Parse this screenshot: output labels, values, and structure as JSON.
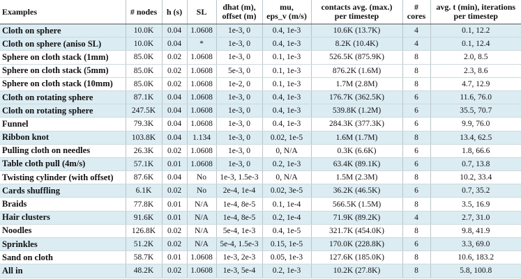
{
  "table": {
    "header": [
      "Examples",
      "# nodes",
      "h (s)",
      "SL",
      "dhat (m),\noffset (m)",
      "mu,\neps_v (m/s)",
      "contacts avg. (max.)\nper timestep",
      "#\ncores",
      "avg. t (min), iterations\nper timestep"
    ],
    "rows": [
      [
        "Cloth on sphere",
        "10.0K",
        "0.04",
        "1.0608",
        "1e-3, 0",
        "0.4, 1e-3",
        "10.6K (13.7K)",
        "4",
        "0.1, 12.2"
      ],
      [
        "Cloth on sphere (aniso SL)",
        "10.0K",
        "0.04",
        "*",
        "1e-3, 0",
        "0.4, 1e-3",
        "8.2K (10.4K)",
        "4",
        "0.1, 12.4"
      ],
      [
        "Sphere on cloth stack (1mm)",
        "85.0K",
        "0.02",
        "1.0608",
        "1e-3, 0",
        "0.1, 1e-3",
        "526.5K (875.9K)",
        "8",
        "2.0, 8.5"
      ],
      [
        "Sphere on cloth stack (5mm)",
        "85.0K",
        "0.02",
        "1.0608",
        "5e-3, 0",
        "0.1, 1e-3",
        "876.2K (1.6M)",
        "8",
        "2.3, 8.6"
      ],
      [
        "Sphere on cloth stack (10mm)",
        "85.0K",
        "0.02",
        "1.0608",
        "1e-2, 0",
        "0.1, 1e-3",
        "1.7M (2.8M)",
        "8",
        "4.7, 12.9"
      ],
      [
        "Cloth on rotating sphere",
        "87.1K",
        "0.04",
        "1.0608",
        "1e-3, 0",
        "0.4, 1e-3",
        "176.7K (362.5K)",
        "6",
        "11.6, 76.0"
      ],
      [
        "Cloth on rotating sphere",
        "247.5K",
        "0.04",
        "1.0608",
        "1e-3, 0",
        "0.4, 1e-3",
        "539.8K (1.2M)",
        "6",
        "35.5, 70.7"
      ],
      [
        "Funnel",
        "79.3K",
        "0.04",
        "1.0608",
        "1e-3, 0",
        "0.4, 1e-3",
        "284.3K (377.3K)",
        "6",
        "9.9, 76.0"
      ],
      [
        "Ribbon knot",
        "103.8K",
        "0.04",
        "1.134",
        "1e-3, 0",
        "0.02, 1e-5",
        "1.6M (1.7M)",
        "8",
        "13.4, 62.5"
      ],
      [
        "Pulling cloth on needles",
        "26.3K",
        "0.02",
        "1.0608",
        "1e-3, 0",
        "0, N/A",
        "0.3K (6.6K)",
        "6",
        "1.8, 66.6"
      ],
      [
        "Table cloth pull (4m/s)",
        "57.1K",
        "0.01",
        "1.0608",
        "1e-3, 0",
        "0.2, 1e-3",
        "63.4K (89.1K)",
        "6",
        "0.7, 13.8"
      ],
      [
        "Twisting cylinder (with offset)",
        "87.6K",
        "0.04",
        "No",
        "1e-3, 1.5e-3",
        "0, N/A",
        "1.5M (2.3M)",
        "8",
        "10.2, 33.4"
      ],
      [
        "Cards shuffling",
        "6.1K",
        "0.02",
        "No",
        "2e-4, 1e-4",
        "0.02, 3e-5",
        "36.2K (46.5K)",
        "6",
        "0.7, 35.2"
      ],
      [
        "Braids",
        "77.8K",
        "0.01",
        "N/A",
        "1e-4, 8e-5",
        "0.1, 1e-4",
        "566.5K (1.5M)",
        "8",
        "3.5, 16.9"
      ],
      [
        "Hair clusters",
        "91.6K",
        "0.01",
        "N/A",
        "1e-4, 8e-5",
        "0.2, 1e-4",
        "71.9K (89.2K)",
        "4",
        "2.7, 31.0"
      ],
      [
        "Noodles",
        "126.8K",
        "0.02",
        "N/A",
        "5e-4, 1e-3",
        "0.4, 1e-5",
        "321.7K (454.0K)",
        "8",
        "9.8, 41.9"
      ],
      [
        "Sprinkles",
        "51.2K",
        "0.02",
        "N/A",
        "5e-4, 1.5e-3",
        "0.15, 1e-5",
        "170.0K (228.8K)",
        "6",
        "3.3, 69.0"
      ],
      [
        "Sand on cloth",
        "58.7K",
        "0.01",
        "1.0608",
        "1e-3, 2e-3",
        "0.05, 1e-3",
        "127.6K (185.0K)",
        "8",
        "10.6, 183.2"
      ],
      [
        "All in",
        "48.2K",
        "0.02",
        "1.0608",
        "1e-3, 5e-4",
        "0.2, 1e-3",
        "10.2K (27.8K)",
        "8",
        "5.8, 100.8"
      ]
    ]
  }
}
